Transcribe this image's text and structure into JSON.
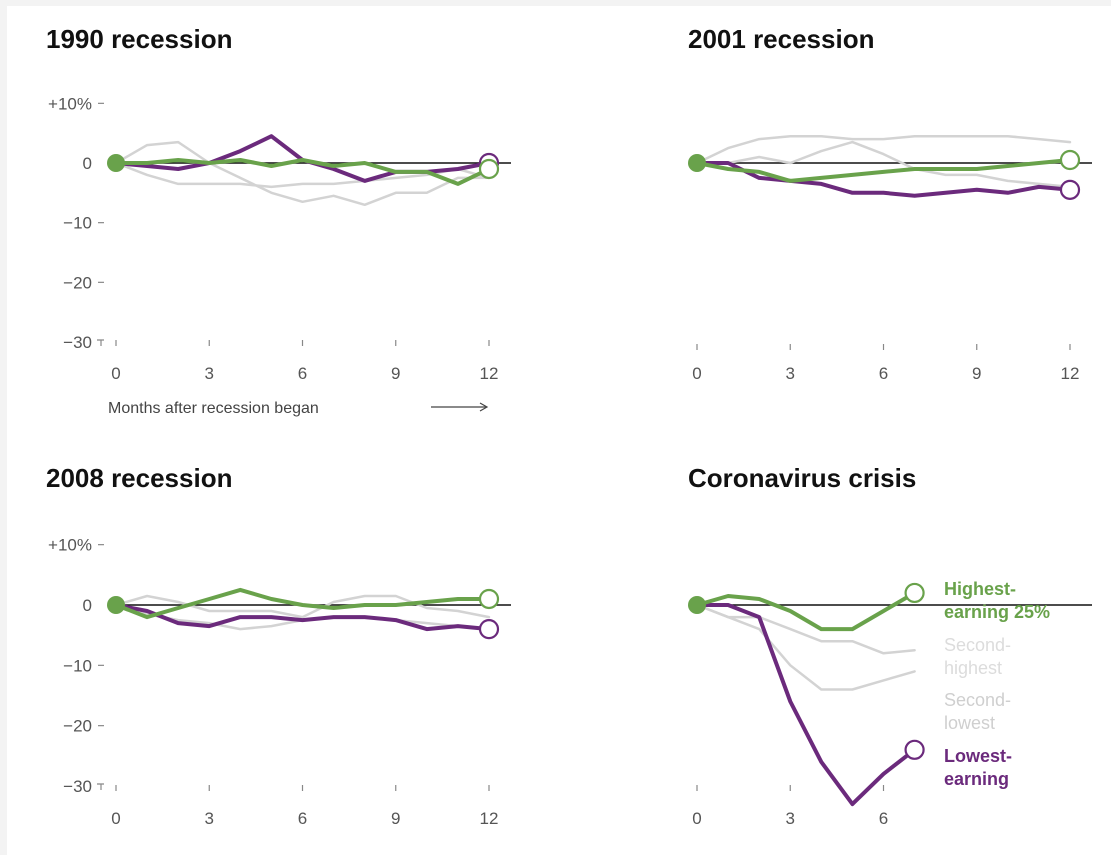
{
  "colors": {
    "highest": "#69a24b",
    "lowest": "#6b2a7c",
    "other": "#d3d3d3",
    "zero_line": "#111111",
    "tick_text": "#555555"
  },
  "x_axis_note": "Months after recession began",
  "chart_data": [
    {
      "type": "line",
      "title": "1990 recession",
      "x": [
        0,
        1,
        2,
        3,
        4,
        5,
        6,
        7,
        8,
        9,
        10,
        11,
        12
      ],
      "xticks": [
        0,
        3,
        6,
        9,
        12
      ],
      "yticks": [
        10,
        0,
        -10,
        -20,
        -30
      ],
      "ytick_labels": [
        "+10%",
        "0",
        "−10",
        "−20",
        "−30"
      ],
      "ylim": [
        -30,
        10
      ],
      "xlim": [
        0,
        12
      ],
      "grid": false,
      "series": [
        {
          "key": "second_highest",
          "values": [
            0,
            3,
            3.5,
            0,
            -2.5,
            -5,
            -6.5,
            -5.5,
            -7,
            -5,
            -5,
            -2.5,
            -2.5
          ]
        },
        {
          "key": "second_lowest",
          "values": [
            0,
            -2,
            -3.5,
            -3.5,
            -3.5,
            -4,
            -3.5,
            -3.5,
            -3,
            -2.5,
            -2,
            -1,
            -2.5
          ]
        },
        {
          "key": "lowest",
          "values": [
            0,
            -0.5,
            -1,
            0,
            2,
            4.5,
            0.5,
            -1,
            -3,
            -1.5,
            -1.5,
            -1,
            0
          ]
        },
        {
          "key": "highest",
          "values": [
            0,
            0,
            0.5,
            0,
            0.5,
            -0.5,
            0.5,
            -0.5,
            0,
            -1.5,
            -1.5,
            -3.5,
            -1
          ]
        }
      ]
    },
    {
      "type": "line",
      "title": "2001 recession",
      "x": [
        0,
        1,
        2,
        3,
        4,
        5,
        6,
        7,
        8,
        9,
        10,
        11,
        12
      ],
      "xticks": [
        0,
        3,
        6,
        9,
        12
      ],
      "yticks": [
        10,
        0,
        -10,
        -20,
        -30
      ],
      "ytick_labels": [],
      "ylim": [
        -30,
        10
      ],
      "xlim": [
        0,
        12
      ],
      "grid": false,
      "series": [
        {
          "key": "second_highest",
          "values": [
            0,
            2.5,
            4,
            4.5,
            4.5,
            4,
            4,
            4.5,
            4.5,
            4.5,
            4.5,
            4,
            3.5
          ]
        },
        {
          "key": "second_lowest",
          "values": [
            0,
            0,
            1,
            0,
            2,
            3.5,
            1.5,
            -1,
            -2,
            -2,
            -3,
            -3.5,
            -4
          ]
        },
        {
          "key": "lowest",
          "values": [
            0,
            0,
            -2.5,
            -3,
            -3.5,
            -5,
            -5,
            -5.5,
            -5,
            -4.5,
            -5,
            -4,
            -4.5
          ]
        },
        {
          "key": "highest",
          "values": [
            0,
            -1,
            -1.5,
            -3,
            -2.5,
            -2,
            -1.5,
            -1,
            -1,
            -1,
            -0.5,
            0,
            0.5
          ]
        }
      ]
    },
    {
      "type": "line",
      "title": "2008 recession",
      "x": [
        0,
        1,
        2,
        3,
        4,
        5,
        6,
        7,
        8,
        9,
        10,
        11,
        12
      ],
      "xticks": [
        0,
        3,
        6,
        9,
        12
      ],
      "yticks": [
        10,
        0,
        -10,
        -20,
        -30
      ],
      "ytick_labels": [
        "+10%",
        "0",
        "−10",
        "−20",
        "−30"
      ],
      "ylim": [
        -30,
        10
      ],
      "xlim": [
        0,
        12
      ],
      "grid": false,
      "series": [
        {
          "key": "second_highest",
          "values": [
            0,
            1.5,
            0.5,
            -1,
            -1,
            -1,
            -2,
            0.5,
            1.5,
            1.5,
            -0.5,
            -1,
            -2
          ]
        },
        {
          "key": "second_lowest",
          "values": [
            0,
            -1.5,
            -2.5,
            -3,
            -4,
            -3.5,
            -2.5,
            -2,
            -2,
            -2.5,
            -3,
            -3.5,
            -4
          ]
        },
        {
          "key": "lowest",
          "values": [
            0,
            -1,
            -3,
            -3.5,
            -2,
            -2,
            -2.5,
            -2,
            -2,
            -2.5,
            -4,
            -3.5,
            -4
          ]
        },
        {
          "key": "highest",
          "values": [
            0,
            -2,
            -0.5,
            1,
            2.5,
            1,
            0,
            -0.5,
            0,
            0,
            0.5,
            1,
            1
          ]
        }
      ]
    },
    {
      "type": "line",
      "title": "Coronavirus crisis",
      "x": [
        0,
        1,
        2,
        3,
        4,
        5,
        6,
        7
      ],
      "xticks": [
        0,
        3,
        6
      ],
      "yticks": [
        10,
        0,
        -10,
        -20,
        -30
      ],
      "ytick_labels": [],
      "ylim": [
        -30,
        10
      ],
      "xlim": [
        0,
        12
      ],
      "grid": false,
      "series": [
        {
          "key": "second_highest",
          "values": [
            0,
            -2,
            -2,
            -4,
            -6,
            -6,
            -8,
            -7.5
          ]
        },
        {
          "key": "second_lowest",
          "values": [
            0,
            -2,
            -4,
            -10,
            -14,
            -14,
            -12.5,
            -11
          ]
        },
        {
          "key": "lowest",
          "values": [
            0,
            0,
            -2,
            -16,
            -26,
            -33,
            -28,
            -24
          ]
        },
        {
          "key": "highest",
          "values": [
            0,
            1.5,
            1,
            -1,
            -4,
            -4,
            -1,
            2
          ]
        }
      ]
    }
  ],
  "legend": {
    "highest": "Highest-\nearning 25%",
    "second_highest": "Second-\nhighest",
    "second_lowest": "Second-\nlowest",
    "lowest": "Lowest-\nearning"
  }
}
